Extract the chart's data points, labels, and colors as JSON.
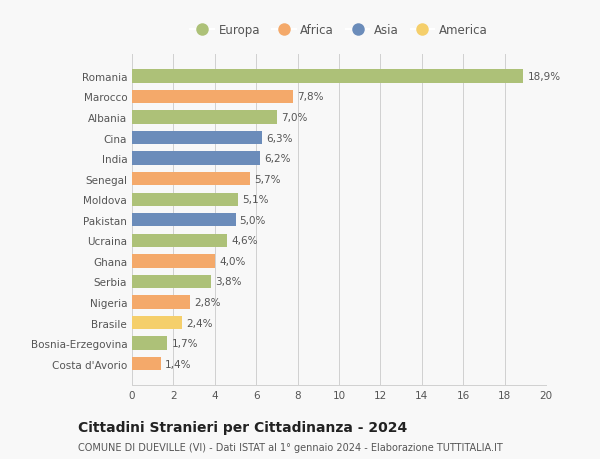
{
  "countries": [
    "Romania",
    "Marocco",
    "Albania",
    "Cina",
    "India",
    "Senegal",
    "Moldova",
    "Pakistan",
    "Ucraina",
    "Ghana",
    "Serbia",
    "Nigeria",
    "Brasile",
    "Bosnia-Erzegovina",
    "Costa d'Avorio"
  ],
  "values": [
    18.9,
    7.8,
    7.0,
    6.3,
    6.2,
    5.7,
    5.1,
    5.0,
    4.6,
    4.0,
    3.8,
    2.8,
    2.4,
    1.7,
    1.4
  ],
  "labels": [
    "18,9%",
    "7,8%",
    "7,0%",
    "6,3%",
    "6,2%",
    "5,7%",
    "5,1%",
    "5,0%",
    "4,6%",
    "4,0%",
    "3,8%",
    "2,8%",
    "2,4%",
    "1,7%",
    "1,4%"
  ],
  "regions": [
    "Europa",
    "Africa",
    "Europa",
    "Asia",
    "Asia",
    "Africa",
    "Europa",
    "Asia",
    "Europa",
    "Africa",
    "Europa",
    "Africa",
    "America",
    "Europa",
    "Africa"
  ],
  "colors": {
    "Europa": "#adc178",
    "Africa": "#f4a96a",
    "Asia": "#6b8cba",
    "America": "#f5cf6b"
  },
  "xlim": [
    0,
    20
  ],
  "xticks": [
    0,
    2,
    4,
    6,
    8,
    10,
    12,
    14,
    16,
    18,
    20
  ],
  "title1": "Cittadini Stranieri per Cittadinanza - 2024",
  "title2": "COMUNE DI DUEVILLE (VI) - Dati ISTAT al 1° gennaio 2024 - Elaborazione TUTTITALIA.IT",
  "background_color": "#f8f8f8",
  "bar_height": 0.65,
  "label_fontsize": 7.5,
  "tick_fontsize": 7.5,
  "legend_fontsize": 8.5,
  "title1_fontsize": 10,
  "title2_fontsize": 7
}
